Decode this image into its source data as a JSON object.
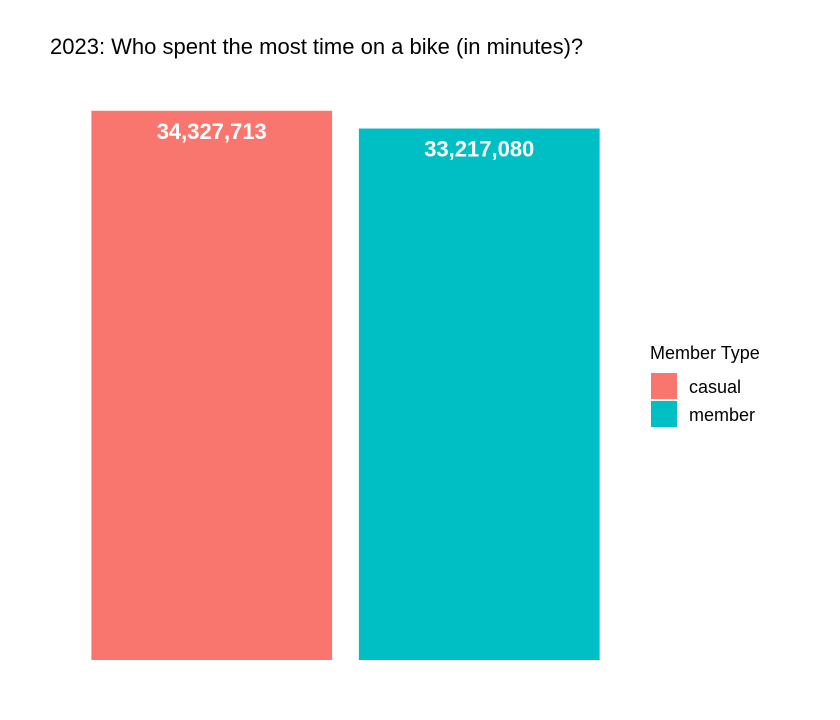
{
  "chart_data": {
    "type": "bar",
    "title": "2023: Who spent the most time on a bike (in minutes)?",
    "xlabel": "",
    "ylabel": "",
    "categories": [
      "casual",
      "member"
    ],
    "values": [
      34327713,
      33217080
    ],
    "value_labels": [
      "34,327,713",
      "33,217,080"
    ],
    "colors": [
      "#F8766D",
      "#00BFC4"
    ],
    "ylim": [
      0,
      35000000
    ],
    "grid": false,
    "axes_visible": false,
    "legend": {
      "title": "Member Type",
      "placement": "right",
      "entries": [
        "casual",
        "member"
      ]
    }
  }
}
